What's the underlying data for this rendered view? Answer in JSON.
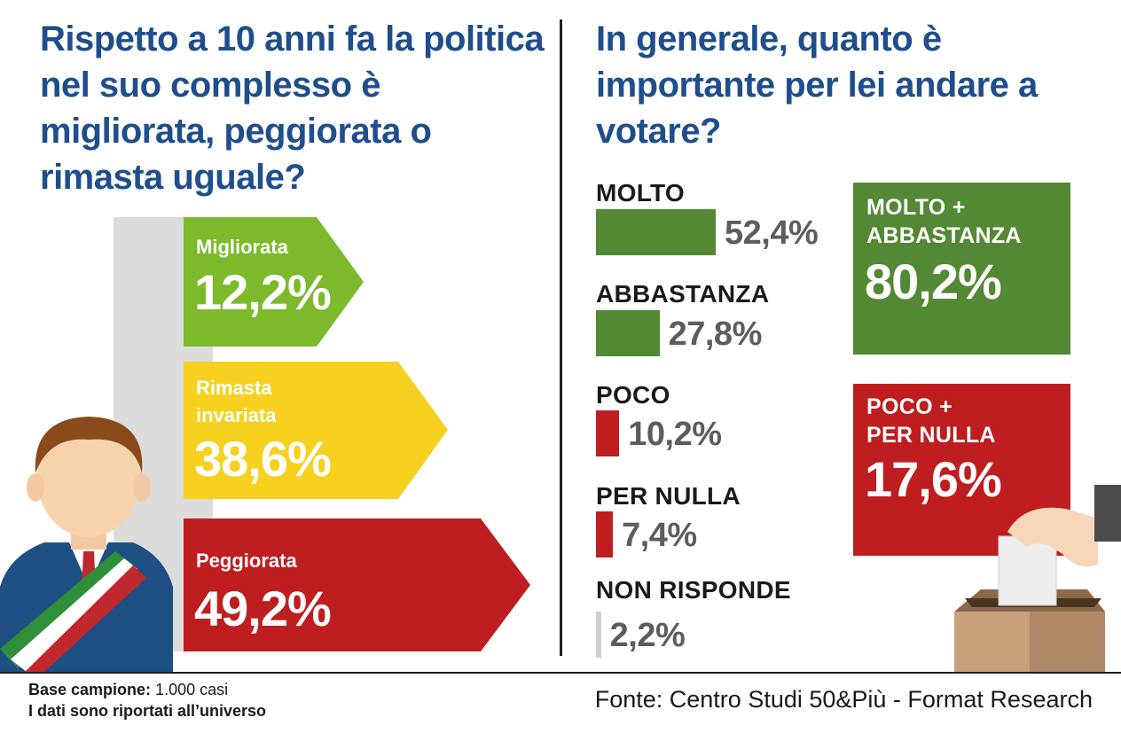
{
  "left": {
    "title": "Rispetto a 10 anni fa la politica nel suo complesso è migliorata, peggiorata o rimasta uguale?",
    "arrows": [
      {
        "label": "Migliorata",
        "value": "12,2%",
        "color": "#7cba2c"
      },
      {
        "label": "Rimasta invariata",
        "value": "38,6%",
        "color": "#f6d11f"
      },
      {
        "label": "Peggiorata",
        "value": "49,2%",
        "color": "#be1e20"
      }
    ]
  },
  "right": {
    "title": "In generale, quanto è importante per lei andare a votare?",
    "summary": [
      {
        "label": "MOLTO +\nABBASTANZA",
        "value": "80,2%",
        "color": "#538834"
      },
      {
        "label": "POCO +\nPER NULLA",
        "value": "17,6%",
        "color": "#be1e20"
      }
    ]
  },
  "chart_data": [
    {
      "type": "bar",
      "title": "Rispetto a 10 anni fa la politica nel suo complesso è migliorata, peggiorata o rimasta uguale?",
      "categories": [
        "Migliorata",
        "Rimasta invariata",
        "Peggiorata"
      ],
      "values": [
        12.2,
        38.6,
        49.2
      ],
      "value_labels": [
        "12,2%",
        "38,6%",
        "49,2%"
      ],
      "colors": [
        "#7cba2c",
        "#f6d11f",
        "#be1e20"
      ]
    },
    {
      "type": "bar",
      "title": "In generale, quanto è importante per lei andare a votare?",
      "categories": [
        "MOLTO",
        "ABBASTANZA",
        "POCO",
        "PER NULLA",
        "NON RISPONDE"
      ],
      "values": [
        52.4,
        27.8,
        10.2,
        7.4,
        2.2
      ],
      "value_labels": [
        "52,4%",
        "27,8%",
        "10,2%",
        "7,4%",
        "2,2%"
      ],
      "colors": [
        "#538834",
        "#538834",
        "#be1e20",
        "#be1e20",
        "#d0d0d0"
      ]
    }
  ],
  "footer": {
    "base_label": "Base campione:",
    "base_value": "1.000 casi",
    "universe": "I dati sono riportati all’universo",
    "source": "Fonte: Centro Studi 50&Più - Format Research"
  }
}
